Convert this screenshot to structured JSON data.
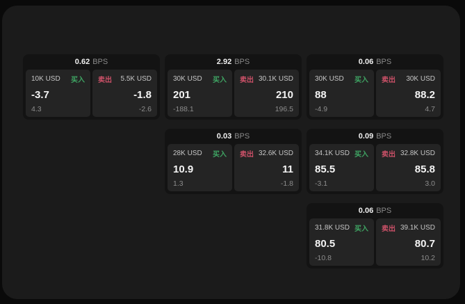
{
  "labels": {
    "bps_suffix": "BPS",
    "buy": "买入",
    "sell": "卖出"
  },
  "colors": {
    "page_bg": "#0a0a0a",
    "main_panel_bg": "#1b1b1b",
    "card_bg": "#131313",
    "cell_bg": "#242424",
    "buy_accent": "#3fa463",
    "sell_accent": "#cc5168"
  },
  "cards": [
    {
      "bps": "0.62",
      "buy": {
        "amount": "10K USD",
        "value": "-3.7",
        "sub": "4.3"
      },
      "sell": {
        "amount": "5.5K USD",
        "value": "-1.8",
        "sub": "-2.6"
      }
    },
    {
      "bps": "2.92",
      "buy": {
        "amount": "30K USD",
        "value": "201",
        "sub": "-188.1"
      },
      "sell": {
        "amount": "30.1K USD",
        "value": "210",
        "sub": "196.5"
      }
    },
    {
      "bps": "0.06",
      "buy": {
        "amount": "30K USD",
        "value": "88",
        "sub": "-4.9"
      },
      "sell": {
        "amount": "30K USD",
        "value": "88.2",
        "sub": "4.7"
      }
    },
    {
      "bps": "0.03",
      "buy": {
        "amount": "28K USD",
        "value": "10.9",
        "sub": "1.3"
      },
      "sell": {
        "amount": "32.6K USD",
        "value": "11",
        "sub": "-1.8"
      }
    },
    {
      "bps": "0.09",
      "buy": {
        "amount": "34.1K USD",
        "value": "85.5",
        "sub": "-3.1"
      },
      "sell": {
        "amount": "32.8K USD",
        "value": "85.8",
        "sub": "3.0"
      }
    },
    {
      "bps": "0.06",
      "buy": {
        "amount": "31.8K USD",
        "value": "80.5",
        "sub": "-10.8"
      },
      "sell": {
        "amount": "39.1K USD",
        "value": "80.7",
        "sub": "10.2"
      }
    }
  ]
}
